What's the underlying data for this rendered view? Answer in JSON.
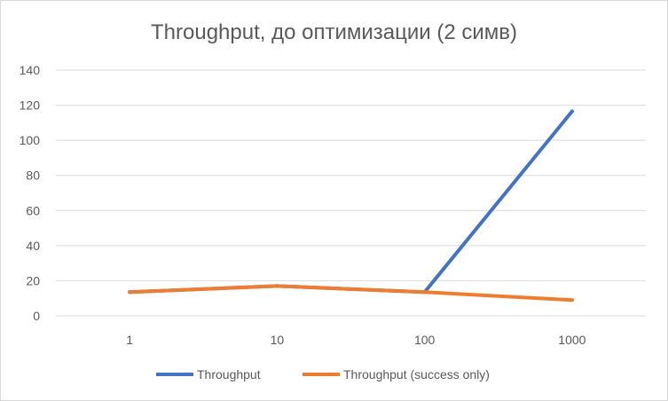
{
  "chart_data": {
    "type": "line",
    "title": "Throughput, до оптимизации (2 симв)",
    "categories": [
      "1",
      "10",
      "100",
      "1000"
    ],
    "series": [
      {
        "name": "Throughput",
        "color": "#4472c4",
        "values": [
          13.5,
          17,
          13.5,
          116.5
        ]
      },
      {
        "name": "Throughput (success only)",
        "color": "#ed7d31",
        "values": [
          13.5,
          17,
          13.5,
          9
        ]
      }
    ],
    "yticks": [
      "0",
      "20",
      "40",
      "60",
      "80",
      "100",
      "120",
      "140"
    ],
    "ylim": [
      0,
      140
    ],
    "grid": true,
    "legend_position": "bottom"
  }
}
